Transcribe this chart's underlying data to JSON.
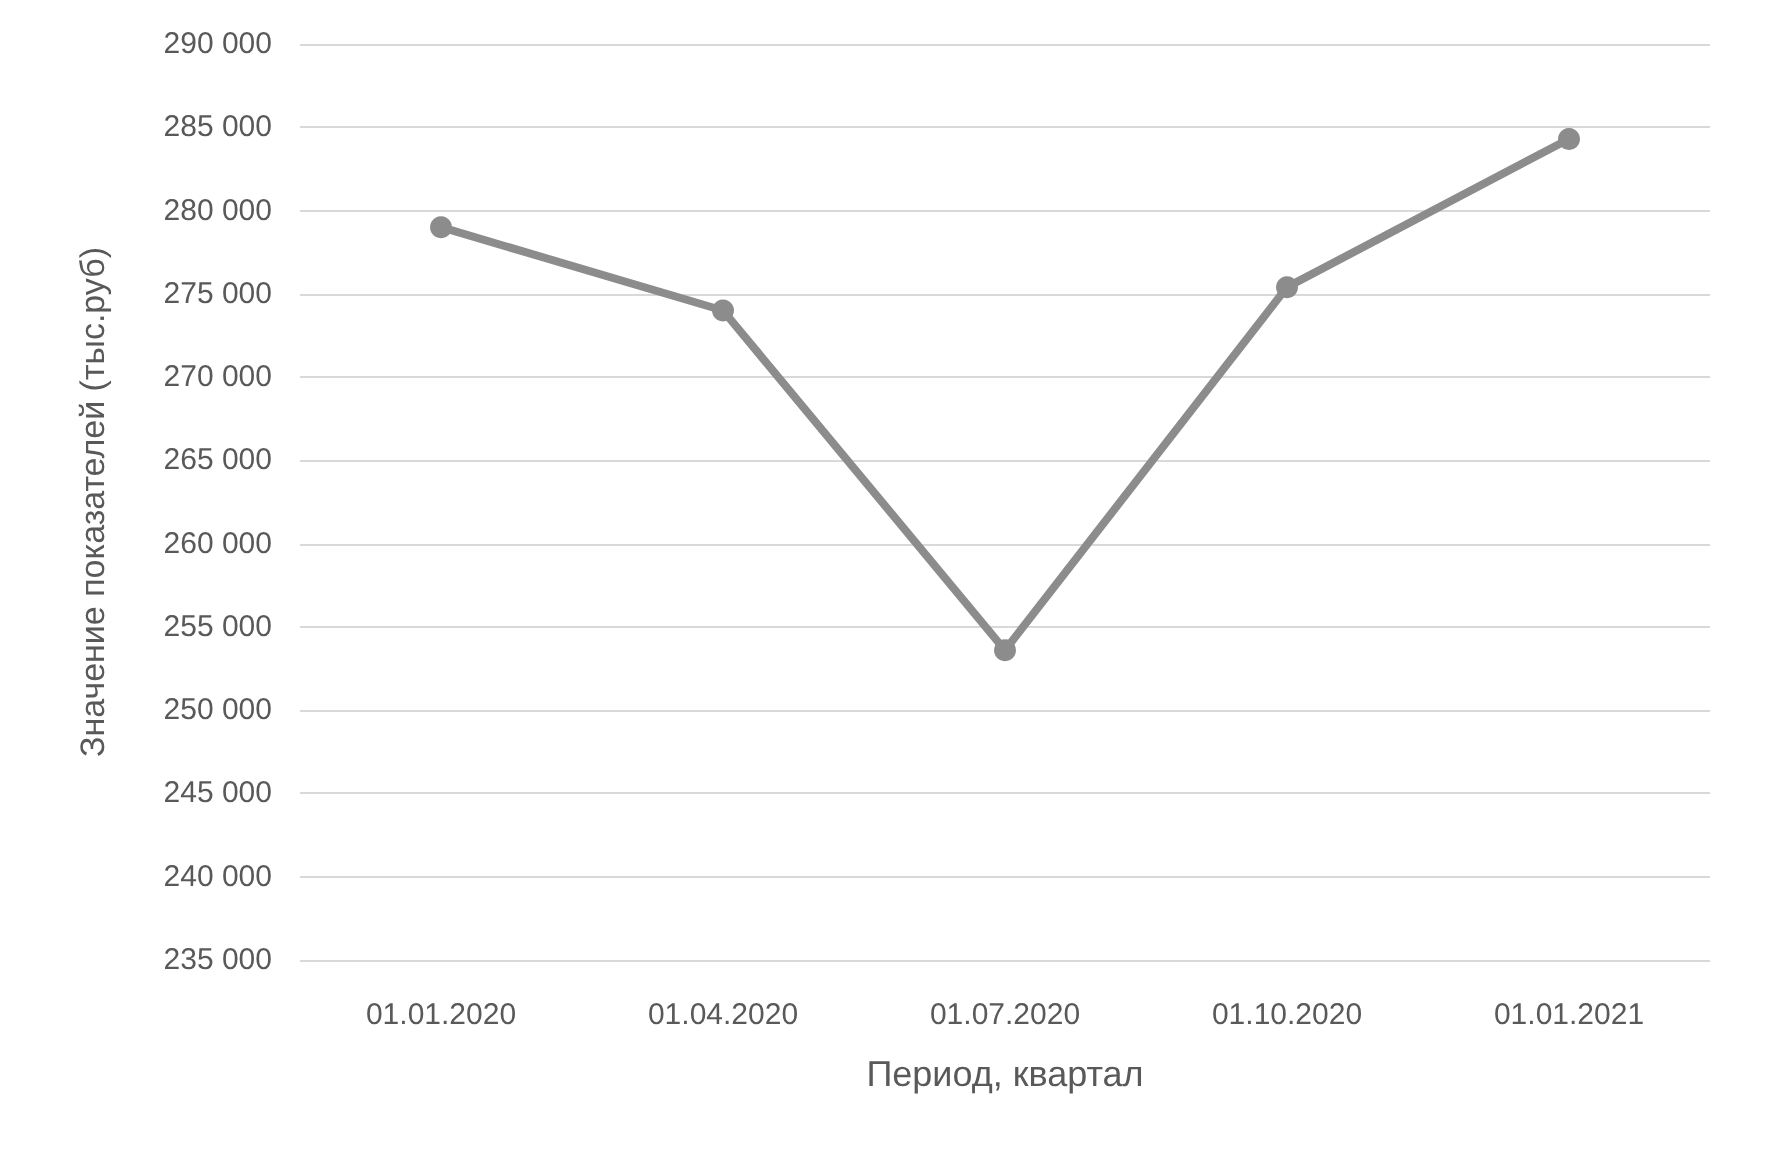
{
  "chart_data": {
    "type": "line",
    "xlabel": "Период, квартал",
    "ylabel": "Значение показателей (тыс.руб)",
    "categories": [
      "01.01.2020",
      "01.04.2020",
      "01.07.2020",
      "01.10.2020",
      "01.01.2021"
    ],
    "series": [
      {
        "color": "#8c8c8c",
        "values": [
          279000,
          274000,
          253600,
          275400,
          284300
        ]
      }
    ],
    "ylim": [
      235000,
      290000
    ],
    "yticks": [
      {
        "value": 235000,
        "label": "235 000"
      },
      {
        "value": 240000,
        "label": "240 000"
      },
      {
        "value": 245000,
        "label": "245 000"
      },
      {
        "value": 250000,
        "label": "250 000"
      },
      {
        "value": 255000,
        "label": "255 000"
      },
      {
        "value": 260000,
        "label": "260 000"
      },
      {
        "value": 265000,
        "label": "265 000"
      },
      {
        "value": 270000,
        "label": "270 000"
      },
      {
        "value": 275000,
        "label": "275 000"
      },
      {
        "value": 280000,
        "label": "280 000"
      },
      {
        "value": 285000,
        "label": "285 000"
      },
      {
        "value": 290000,
        "label": "290 000"
      }
    ],
    "grid": "y",
    "marker": "circle",
    "line_style": "solid"
  }
}
